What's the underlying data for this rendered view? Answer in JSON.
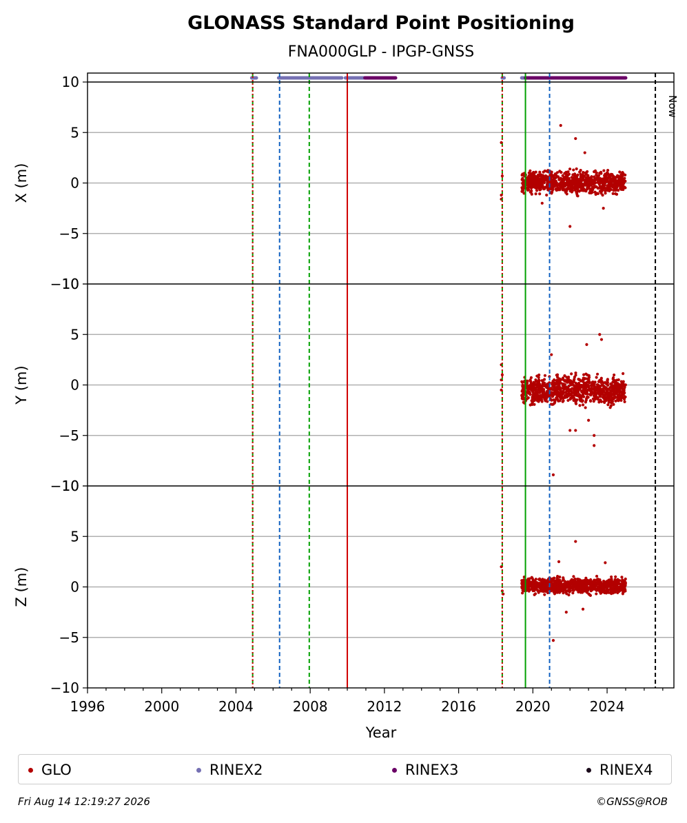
{
  "title": "GLONASS Standard Point Positioning",
  "subtitle": "FNA000GLP - IPGP-GNSS",
  "footer": {
    "timestamp": "Fri Aug 14 12:19:27 2026",
    "copyright": "©GNSS@ROB"
  },
  "legend": [
    {
      "label": "GLO",
      "color": "#b30000"
    },
    {
      "label": "RINEX2",
      "color": "#7570b3"
    },
    {
      "label": "RINEX3",
      "color": "#6a0066"
    },
    {
      "label": "RINEX4",
      "color": "#1a0a1a"
    }
  ],
  "chart_data": {
    "type": "scatter",
    "xlabel": "Year",
    "xlim": [
      1996,
      2027.6
    ],
    "x_ticks": [
      1996,
      2000,
      2004,
      2008,
      2012,
      2016,
      2020,
      2024
    ],
    "ylim": [
      -10,
      10
    ],
    "y_ticks": [
      -10,
      -5,
      0,
      5,
      10
    ],
    "grid": "horizontal",
    "now_label": "Now",
    "now_x": 2026.6,
    "panels": [
      {
        "ylabel": "X (m)",
        "series": [
          {
            "name": "GLO",
            "outliers": [
              [
                2018.3,
                4.0
              ],
              [
                2018.35,
                0.7
              ],
              [
                2018.3,
                -1.2
              ],
              [
                2018.3,
                -1.6
              ],
              [
                2021.5,
                5.7
              ],
              [
                2022.3,
                4.4
              ],
              [
                2022.8,
                3.0
              ],
              [
                2022.0,
                -4.3
              ],
              [
                2020.5,
                -2.0
              ],
              [
                2023.8,
                -2.5
              ]
            ],
            "cluster": {
              "x_range": [
                2019.4,
                2025.0
              ],
              "y_range": [
                -1.5,
                1.6
              ]
            }
          }
        ]
      },
      {
        "ylabel": "Y (m)",
        "series": [
          {
            "name": "GLO",
            "outliers": [
              [
                2018.3,
                2.0
              ],
              [
                2018.35,
                1.0
              ],
              [
                2018.3,
                0.5
              ],
              [
                2018.3,
                -0.5
              ],
              [
                2021.1,
                -8.9
              ],
              [
                2023.6,
                5.0
              ],
              [
                2023.7,
                4.5
              ],
              [
                2022.9,
                4.0
              ],
              [
                2021.0,
                3.0
              ],
              [
                2023.3,
                -6.0
              ],
              [
                2023.3,
                -5.0
              ],
              [
                2022.3,
                -4.5
              ],
              [
                2022.0,
                -4.5
              ],
              [
                2023.0,
                -3.5
              ]
            ],
            "cluster": {
              "x_range": [
                2019.4,
                2025.0
              ],
              "y_range": [
                -2.5,
                1.5
              ]
            }
          }
        ]
      },
      {
        "ylabel": "Z (m)",
        "series": [
          {
            "name": "GLO",
            "outliers": [
              [
                2018.3,
                2.0
              ],
              [
                2018.35,
                -0.4
              ],
              [
                2018.4,
                -0.7
              ],
              [
                2021.1,
                -5.3
              ],
              [
                2022.3,
                4.5
              ],
              [
                2021.4,
                2.5
              ],
              [
                2023.9,
                2.4
              ],
              [
                2021.8,
                -2.5
              ],
              [
                2022.7,
                -2.2
              ]
            ],
            "cluster": {
              "x_range": [
                2019.4,
                2025.0
              ],
              "y_range": [
                -1.0,
                1.2
              ]
            }
          }
        ]
      }
    ],
    "rinex_availability": [
      {
        "format": "RINEX2",
        "ranges": [
          [
            2004.85,
            2005.1
          ],
          [
            2006.3,
            2009.7
          ],
          [
            2009.9,
            2010.9
          ],
          [
            2018.35,
            2018.45
          ],
          [
            2019.4,
            2019.8
          ]
        ]
      },
      {
        "format": "RINEX3",
        "ranges": [
          [
            2010.95,
            2012.6
          ],
          [
            2019.6,
            2025.0
          ]
        ]
      }
    ],
    "event_lines": [
      {
        "x": 2004.9,
        "color": "#00a000",
        "style": "dashed"
      },
      {
        "x": 2004.9,
        "color": "#d00000",
        "style": "dotted"
      },
      {
        "x": 2006.35,
        "color": "#1060c0",
        "style": "dashed"
      },
      {
        "x": 2007.95,
        "color": "#00a000",
        "style": "dashed"
      },
      {
        "x": 2010.0,
        "color": "#d00000",
        "style": "solid"
      },
      {
        "x": 2018.35,
        "color": "#00a000",
        "style": "dashed"
      },
      {
        "x": 2018.35,
        "color": "#d00000",
        "style": "dotted"
      },
      {
        "x": 2019.6,
        "color": "#00a000",
        "style": "solid"
      },
      {
        "x": 2020.9,
        "color": "#1060c0",
        "style": "dashed"
      },
      {
        "x": 2026.6,
        "color": "#000000",
        "style": "dashed"
      }
    ]
  }
}
